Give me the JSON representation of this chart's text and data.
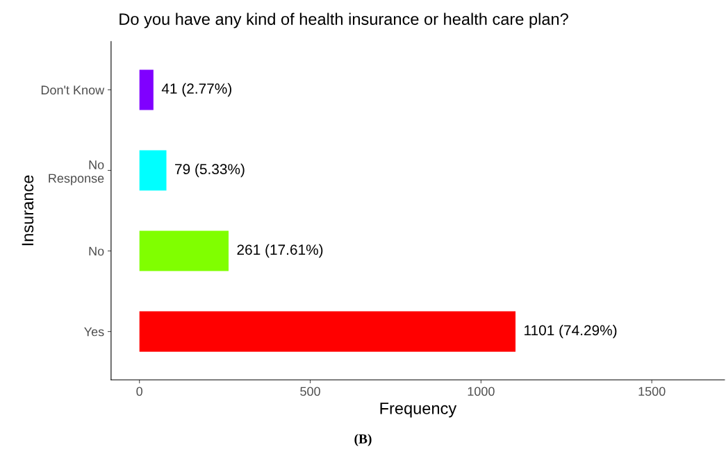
{
  "chart_data": {
    "type": "bar",
    "orientation": "horizontal",
    "title": "Do you have any kind of health insurance or health care plan?",
    "xlabel": "Frequency",
    "ylabel": "Insurance",
    "categories": [
      "Don't Know",
      "No\nResponse",
      "No",
      "Yes"
    ],
    "values": [
      41,
      79,
      261,
      1101
    ],
    "colors": [
      "#8000ff",
      "#00ffff",
      "#80ff00",
      "#ff0000"
    ],
    "value_labels": [
      "41 (2.77%)",
      "79 (5.33%)",
      "261 (17.61%)",
      "1101 (74.29%)"
    ],
    "xlim": [
      -83,
      1713
    ],
    "xticks": [
      0,
      500,
      1000,
      1500
    ],
    "grid": false,
    "legend": false,
    "annotations": [
      "(B)"
    ]
  }
}
